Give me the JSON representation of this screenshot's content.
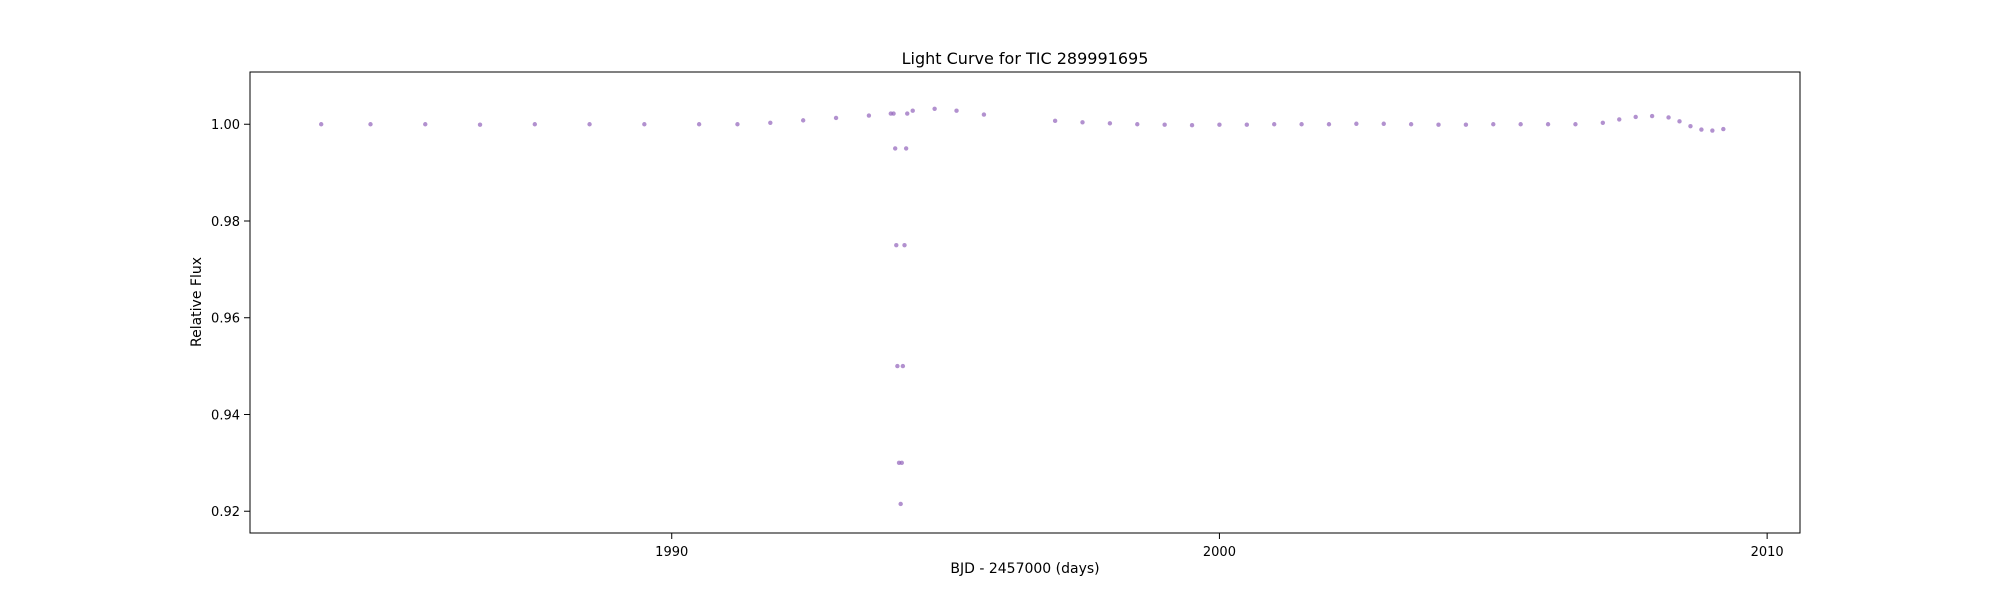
{
  "chart_data": {
    "type": "scatter",
    "title": "Light Curve for TIC 289991695",
    "xlabel": "BJD - 2457000 (days)",
    "ylabel": "Relative Flux",
    "xlim": [
      1982.3,
      2010.6
    ],
    "ylim": [
      0.9155,
      1.0108
    ],
    "x_ticks": [
      1990,
      2000,
      2010
    ],
    "y_ticks": [
      0.92,
      0.94,
      0.96,
      0.98,
      1.0
    ],
    "x_tick_labels": [
      "1990",
      "2000",
      "2010"
    ],
    "y_tick_labels": [
      "0.92",
      "0.94",
      "0.96",
      "0.98",
      "1.00"
    ],
    "grid": false,
    "legend": "none",
    "marker_color": "#9467bd",
    "series": [
      {
        "segments": [
          {
            "x": [
              1983.6,
              1984.5,
              1985.5,
              1986.5,
              1987.5,
              1988.5,
              1989.5,
              1990.5,
              1991.2,
              1991.8,
              1992.4,
              1993.0,
              1993.6,
              1994.0
            ],
            "y": [
              1.0,
              1.0,
              1.0,
              0.9999,
              1.0,
              1.0,
              1.0,
              1.0,
              1.0,
              1.0003,
              1.0008,
              1.0013,
              1.0018,
              1.0022
            ]
          },
          {
            "x": [
              1994.05,
              1994.08,
              1994.1,
              1994.12,
              1994.15,
              1994.18,
              1994.2,
              1994.22,
              1994.25,
              1994.28,
              1994.3
            ],
            "y": [
              1.0022,
              0.995,
              0.975,
              0.95,
              0.93,
              0.9215,
              0.93,
              0.95,
              0.975,
              0.995,
              1.0022
            ]
          },
          {
            "x": [
              1994.4,
              1994.8,
              1995.2,
              1995.7
            ],
            "y": [
              1.0028,
              1.0032,
              1.0028,
              1.002
            ]
          },
          {
            "x": [
              1997.0,
              1997.5,
              1998.0,
              1998.5,
              1999.0,
              1999.5,
              2000.0,
              2000.5,
              2001.0,
              2001.5,
              2002.0,
              2002.5,
              2003.0,
              2003.5,
              2004.0,
              2004.5,
              2005.0,
              2005.5,
              2006.0,
              2006.5,
              2007.0,
              2007.3,
              2007.6,
              2007.9,
              2008.2,
              2008.4,
              2008.6,
              2008.8,
              2009.0,
              2009.2
            ],
            "y": [
              1.0007,
              1.0004,
              1.0002,
              1.0,
              0.9999,
              0.9998,
              0.9999,
              0.9999,
              1.0,
              1.0,
              1.0,
              1.0001,
              1.0001,
              1.0,
              0.9999,
              0.9999,
              1.0,
              1.0,
              1.0,
              1.0,
              1.0003,
              1.001,
              1.0015,
              1.0017,
              1.0014,
              1.0006,
              0.9996,
              0.9989,
              0.9987,
              0.999
            ]
          }
        ]
      }
    ]
  }
}
